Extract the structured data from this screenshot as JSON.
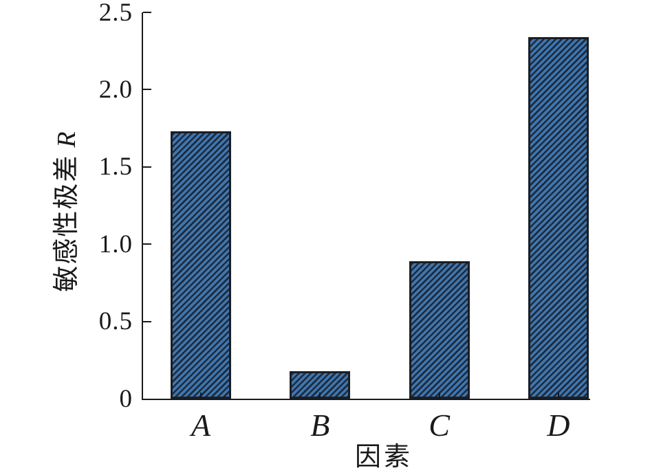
{
  "chart_data": {
    "type": "bar",
    "title": "",
    "categories": [
      "A",
      "B",
      "C",
      "D"
    ],
    "values": [
      1.73,
      0.18,
      0.89,
      2.34
    ],
    "xlabel": "因素",
    "ylabel": "敏感性极差 R",
    "ylabel_cn": "敏感性极差",
    "ylabel_var": "R",
    "ylim": [
      0,
      2.5
    ],
    "yticks": [
      0,
      0.5,
      1.0,
      1.5,
      2.0,
      2.5
    ],
    "ytick_labels": [
      "0",
      "0.5",
      "1.0",
      "1.5",
      "2.0",
      "2.5"
    ],
    "grid": false,
    "legend": false,
    "hatch_pattern": "////",
    "bar_fill_color": "#3E76B0",
    "bar_hatch_color": "#1E2A3A",
    "bar_edge_color": "#1A1E24",
    "axis_color": "#1a1a1a",
    "text_color": "#1a1a1a",
    "background_color": "#ffffff"
  }
}
